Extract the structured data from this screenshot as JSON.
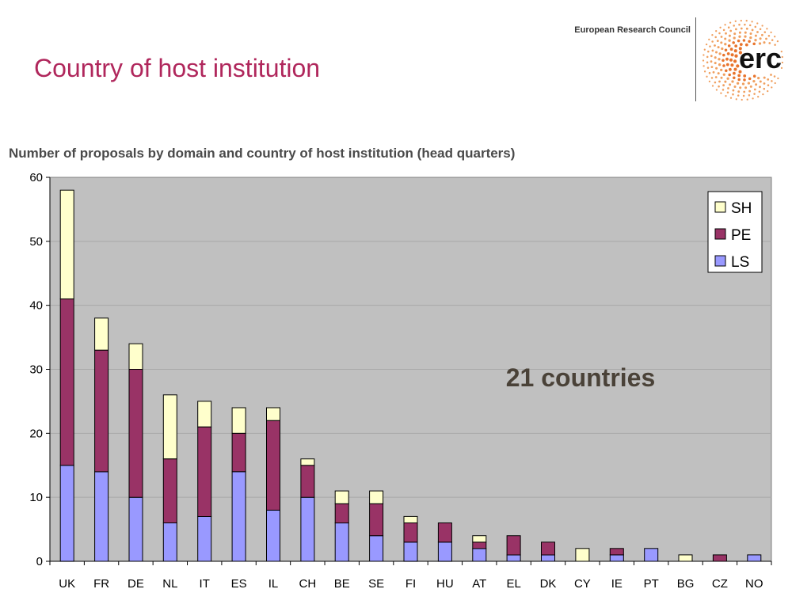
{
  "header": {
    "title": "Country of host institution",
    "org_name": "European Research Council",
    "logo_text": "erc"
  },
  "colors": {
    "title": "#b0275c",
    "plot_bg": "#c0c0c0",
    "SH": "#ffffcc",
    "PE": "#993366",
    "LS": "#9999ff"
  },
  "chart_data": {
    "type": "bar",
    "stacked": true,
    "title": "Number of proposals by domain and country of host institution (head quarters)",
    "xlabel": "",
    "ylabel": "",
    "ylim": [
      0,
      60
    ],
    "yticks": [
      0,
      10,
      20,
      30,
      40,
      50,
      60
    ],
    "grid": true,
    "legend_position": "top-right",
    "categories": [
      "UK",
      "FR",
      "DE",
      "NL",
      "IT",
      "ES",
      "IL",
      "CH",
      "BE",
      "SE",
      "FI",
      "HU",
      "AT",
      "EL",
      "DK",
      "CY",
      "IE",
      "PT",
      "BG",
      "CZ",
      "NO"
    ],
    "series": [
      {
        "name": "LS",
        "values": [
          15,
          14,
          10,
          6,
          7,
          14,
          8,
          10,
          6,
          4,
          3,
          3,
          2,
          1,
          1,
          0,
          1,
          2,
          0,
          0,
          1
        ]
      },
      {
        "name": "PE",
        "values": [
          26,
          19,
          20,
          10,
          14,
          6,
          14,
          5,
          3,
          5,
          3,
          3,
          1,
          3,
          2,
          0,
          1,
          0,
          0,
          1,
          0
        ]
      },
      {
        "name": "SH",
        "values": [
          17,
          5,
          4,
          10,
          4,
          4,
          2,
          1,
          2,
          2,
          1,
          0,
          1,
          0,
          0,
          2,
          0,
          0,
          1,
          0,
          0
        ]
      }
    ],
    "legend_order": [
      "SH",
      "PE",
      "LS"
    ],
    "annotation": "21 countries"
  }
}
